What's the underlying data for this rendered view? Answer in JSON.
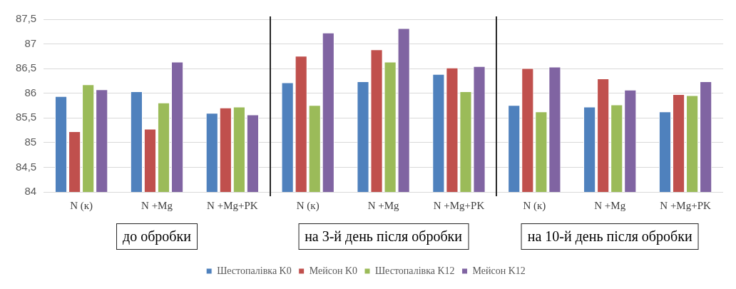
{
  "chart_data": {
    "type": "bar",
    "categories": [
      "N (к)",
      "N +Mg",
      "N +Mg+PK",
      "N (к)",
      "N +Mg",
      "N +Mg+PK",
      "N (к)",
      "N +Mg",
      "N +Mg+PK"
    ],
    "series": [
      {
        "name": "Шестопалівка K0",
        "color": "#4f81bd",
        "values": [
          85.94,
          86.04,
          85.6,
          86.22,
          86.24,
          86.39,
          85.76,
          85.73,
          85.63
        ]
      },
      {
        "name": "Мейсон K0",
        "color": "#c0504d",
        "values": [
          85.23,
          85.28,
          85.71,
          86.76,
          86.89,
          86.52,
          86.51,
          86.3,
          85.98
        ]
      },
      {
        "name": "Шестопалівка K12",
        "color": "#9bbb59",
        "values": [
          86.18,
          85.81,
          85.73,
          85.76,
          86.64,
          86.04,
          85.63,
          85.77,
          85.96
        ]
      },
      {
        "name": "Мейсон K12",
        "color": "#8064a2",
        "values": [
          86.08,
          86.64,
          85.57,
          87.23,
          87.32,
          86.55,
          86.54,
          86.07,
          86.24
        ]
      }
    ],
    "ylim": [
      84,
      87.5
    ],
    "yticks": [
      84,
      {
        "value": 84.5,
        "label": "84,5"
      },
      85,
      {
        "value": 85.5,
        "label": "85,5"
      },
      86,
      {
        "value": 86.5,
        "label": "86,5"
      },
      87,
      {
        "value": 87.5,
        "label": "87,5"
      }
    ],
    "grid": "y",
    "legend": "bottom",
    "annotations": [
      "до обробки",
      "на 3-й день після обробки",
      "на 10-й день після обробки"
    ]
  }
}
